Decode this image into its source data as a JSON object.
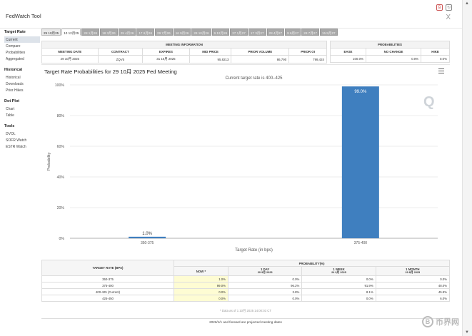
{
  "app": {
    "title": "FedWatch Tool",
    "close_label": "X"
  },
  "sidebar": {
    "sections": [
      {
        "title": "Target Rate",
        "items": [
          {
            "label": "Current",
            "active": true
          },
          {
            "label": "Compare",
            "active": false
          },
          {
            "label": "Probabilities",
            "active": false
          },
          {
            "label": "Aggregated",
            "active": false
          }
        ]
      },
      {
        "title": "Historical",
        "items": [
          {
            "label": "Historical",
            "active": false
          },
          {
            "label": "Downloads",
            "active": false
          },
          {
            "label": "Prior Hikes",
            "active": false
          }
        ]
      },
      {
        "title": "Dot Plot",
        "items": [
          {
            "label": "Chart",
            "active": false
          },
          {
            "label": "Table",
            "active": false
          }
        ]
      },
      {
        "title": "Tools",
        "items": [
          {
            "label": "DVOL",
            "active": false
          },
          {
            "label": "SOFR Watch",
            "active": false
          },
          {
            "label": "ESTR Watch",
            "active": false
          }
        ]
      }
    ]
  },
  "tabs": [
    "29 10月25",
    "10 12月25",
    "28 1月26",
    "18 3月26",
    "29 4月26",
    "17 6月26",
    "29 7月26",
    "16 9月26",
    "28 10月26",
    "9 12月26",
    "27 1月27",
    "17 3月27",
    "28 4月27",
    "9 6月27",
    "28 7月27",
    "15 9月27"
  ],
  "meeting_info": {
    "header": "MEETING INFORMATION",
    "columns": [
      "MEETING DATE",
      "CONTRACT",
      "EXPIRES",
      "MID PRICE",
      "PRIOR VOLUME",
      "PRIOR OI"
    ],
    "values": [
      "29 10月 2025",
      "ZQV5",
      "31 10月 2025",
      "95.8213",
      "86,790",
      "799,424"
    ]
  },
  "probabilities": {
    "header": "PROBABILITIES",
    "columns": [
      "EASE",
      "NO CHANGE",
      "HIKE"
    ],
    "values": [
      "100.0%",
      "0.0%",
      "0.0%"
    ]
  },
  "chart": {
    "menu_icon": "hamburger-icon"
  },
  "chart_data": {
    "type": "bar",
    "title": "Target Rate Probabilities for 29 10月 2025 Fed Meeting",
    "subtitle": "Current target rate is 400–425",
    "categories": [
      "350-375",
      "375-400"
    ],
    "values": [
      1.0,
      99.0
    ],
    "value_labels": [
      "1.0%",
      "99.0%"
    ],
    "xlabel": "Target Rate (in bps)",
    "ylabel": "Probability",
    "ylim": [
      0,
      100
    ],
    "yticks": [
      "0%",
      "20%",
      "40%",
      "60%",
      "80%",
      "100%"
    ],
    "bar_color": "#3f7fbf",
    "grid": true,
    "watermark": "Q"
  },
  "bottom_table": {
    "col_rate": "TARGET RATE (BPS)",
    "prob_header": "PROBABILITY(%)",
    "periods": [
      {
        "label": "NOW *",
        "sub": ""
      },
      {
        "label": "1 DAY",
        "sub": "30 9月 2025"
      },
      {
        "label": "1 WEEK",
        "sub": "24 9月 2025"
      },
      {
        "label": "1 MONTH",
        "sub": "29 8月 2025"
      }
    ],
    "rows": [
      {
        "rate": "350-375",
        "vals": [
          "1.0%",
          "0.0%",
          "0.0%",
          "0.0%"
        ]
      },
      {
        "rate": "375-400",
        "vals": [
          "99.0%",
          "96.2%",
          "91.9%",
          "48.0%"
        ]
      },
      {
        "rate": "400-425 (Current)",
        "vals": [
          "0.0%",
          "3.8%",
          "8.1%",
          "45.9%"
        ]
      },
      {
        "rate": "425-450",
        "vals": [
          "0.0%",
          "0.0%",
          "0.0%",
          "6.0%"
        ]
      }
    ],
    "note": "* Data as of 1 10月 2025 14:00:03 CT",
    "footer": "2026/1/1 and forward are projected meeting dates"
  },
  "watermark": {
    "text": "币界网",
    "logo_glyph": "B"
  },
  "colors": {
    "bar": "#3f7fbf",
    "now_highlight": "#fefcd3",
    "tab_inactive": "#a9a9a9"
  }
}
